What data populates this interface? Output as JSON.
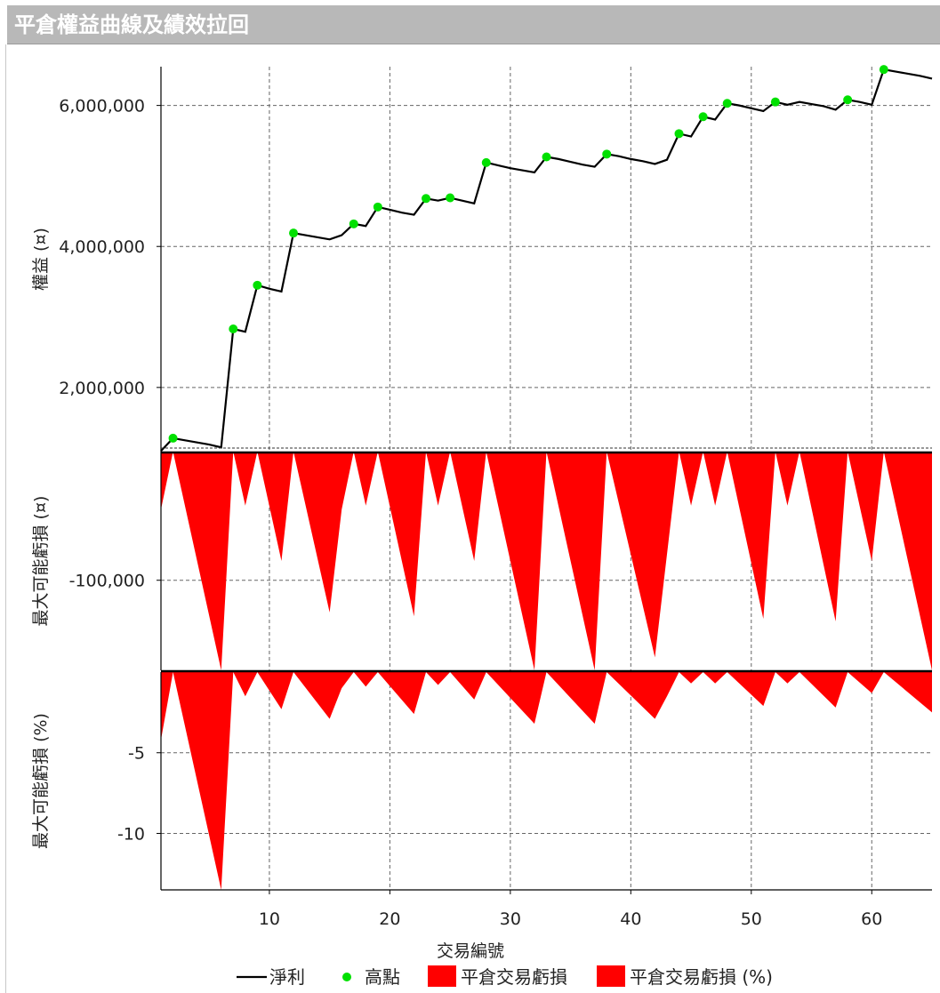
{
  "title": "平倉權益曲線及績效拉回",
  "chart_data": [
    {
      "type": "line",
      "ylabel": "權益 (¤)",
      "xlim": [
        1,
        65
      ],
      "ylim": [
        1090000,
        6550000
      ],
      "yticks": [
        2000000,
        4000000,
        6000000
      ],
      "ytick_labels": [
        "2,000,000",
        "4,000,000",
        "6,000,000"
      ],
      "series": [
        {
          "name": "淨利",
          "color": "#000000",
          "x": [
            1,
            2,
            3,
            4,
            5,
            6,
            7,
            8,
            9,
            10,
            11,
            12,
            13,
            14,
            15,
            16,
            17,
            18,
            19,
            20,
            21,
            22,
            23,
            24,
            25,
            26,
            27,
            28,
            29,
            30,
            31,
            32,
            33,
            34,
            35,
            36,
            37,
            38,
            39,
            40,
            41,
            42,
            43,
            44,
            45,
            46,
            47,
            48,
            49,
            50,
            51,
            52,
            53,
            54,
            55,
            56,
            57,
            58,
            59,
            60,
            61,
            62,
            63,
            64,
            65
          ],
          "y": [
            1100000,
            1280000,
            1250000,
            1220000,
            1190000,
            1150000,
            2830000,
            2790000,
            3450000,
            3400000,
            3360000,
            4190000,
            4160000,
            4130000,
            4100000,
            4160000,
            4320000,
            4290000,
            4560000,
            4520000,
            4480000,
            4450000,
            4680000,
            4650000,
            4690000,
            4650000,
            4610000,
            5190000,
            5150000,
            5110000,
            5080000,
            5050000,
            5270000,
            5240000,
            5200000,
            5160000,
            5130000,
            5310000,
            5280000,
            5240000,
            5210000,
            5170000,
            5230000,
            5600000,
            5560000,
            5840000,
            5800000,
            6030000,
            6000000,
            5960000,
            5920000,
            6050000,
            6010000,
            6050000,
            6020000,
            5990000,
            5940000,
            6080000,
            6050000,
            6010000,
            6510000,
            6480000,
            6450000,
            6420000,
            6380000
          ]
        },
        {
          "name": "高點",
          "color": "#00e000",
          "x": [
            2,
            7,
            9,
            12,
            17,
            19,
            23,
            25,
            28,
            33,
            38,
            44,
            46,
            48,
            52,
            58,
            61
          ],
          "y": [
            1280000,
            2830000,
            3450000,
            4190000,
            4320000,
            4560000,
            4680000,
            4690000,
            5190000,
            5270000,
            5310000,
            5600000,
            5840000,
            6030000,
            6050000,
            6080000,
            6510000
          ]
        }
      ]
    },
    {
      "type": "area",
      "ylabel": "最大可能虧損 (¤)",
      "xlim": [
        1,
        65
      ],
      "ylim": [
        -170000,
        0
      ],
      "yticks": [
        -100000
      ],
      "ytick_labels": [
        "-100,000"
      ],
      "series": [
        {
          "name": "平倉交易虧損",
          "color": "#ff0000",
          "x": [
            1,
            2,
            6,
            7,
            8,
            9,
            11,
            12,
            15,
            16,
            17,
            18,
            19,
            22,
            23,
            24,
            25,
            27,
            28,
            32,
            33,
            37,
            38,
            42,
            43,
            44,
            45,
            46,
            47,
            48,
            51,
            52,
            53,
            54,
            57,
            58,
            60,
            61,
            65
          ],
          "y": [
            -45000,
            0,
            -170000,
            0,
            -42000,
            0,
            -85000,
            0,
            -125000,
            -45000,
            0,
            -42000,
            0,
            -128000,
            0,
            -42000,
            0,
            -85000,
            0,
            -170000,
            0,
            -170000,
            0,
            -160000,
            -80000,
            0,
            -42000,
            0,
            -42000,
            0,
            -130000,
            0,
            -42000,
            0,
            -132000,
            0,
            -85000,
            0,
            -170000
          ]
        }
      ]
    },
    {
      "type": "area",
      "xlabel": "交易編號",
      "ylabel": "最大可能虧損 (%)",
      "xlim": [
        1,
        65
      ],
      "ylim": [
        -13.5,
        0
      ],
      "yticks": [
        -5,
        -10
      ],
      "ytick_labels": [
        "-5",
        "-10"
      ],
      "xticks": [
        10,
        20,
        30,
        40,
        50,
        60
      ],
      "xtick_labels": [
        "10",
        "20",
        "30",
        "40",
        "50",
        "60"
      ],
      "series": [
        {
          "name": "平倉交易虧損 (%)",
          "color": "#ff0000",
          "x": [
            1,
            2,
            6,
            7,
            8,
            9,
            11,
            12,
            15,
            16,
            17,
            18,
            19,
            22,
            23,
            24,
            25,
            27,
            28,
            32,
            33,
            37,
            38,
            42,
            43,
            44,
            45,
            46,
            47,
            48,
            51,
            52,
            53,
            54,
            57,
            58,
            60,
            61,
            65
          ],
          "y": [
            -4.2,
            0,
            -13.5,
            0,
            -1.5,
            0,
            -2.3,
            0,
            -2.9,
            -1.0,
            0,
            -0.9,
            0,
            -2.6,
            0,
            -0.8,
            0,
            -1.7,
            0,
            -3.2,
            0,
            -3.2,
            0,
            -2.9,
            -1.5,
            0,
            -0.7,
            0,
            -0.7,
            0,
            -2.1,
            0,
            -0.7,
            0,
            -2.2,
            0,
            -1.3,
            0,
            -2.5
          ]
        }
      ]
    }
  ],
  "legend": {
    "placement": "bottom",
    "items": [
      {
        "label": "淨利",
        "kind": "line",
        "color": "#000000"
      },
      {
        "label": "高點",
        "kind": "dot",
        "color": "#00e000"
      },
      {
        "label": "平倉交易虧損",
        "kind": "box",
        "color": "#ff0000"
      },
      {
        "label": "平倉交易虧損 (%)",
        "kind": "box",
        "color": "#ff0000"
      }
    ]
  }
}
